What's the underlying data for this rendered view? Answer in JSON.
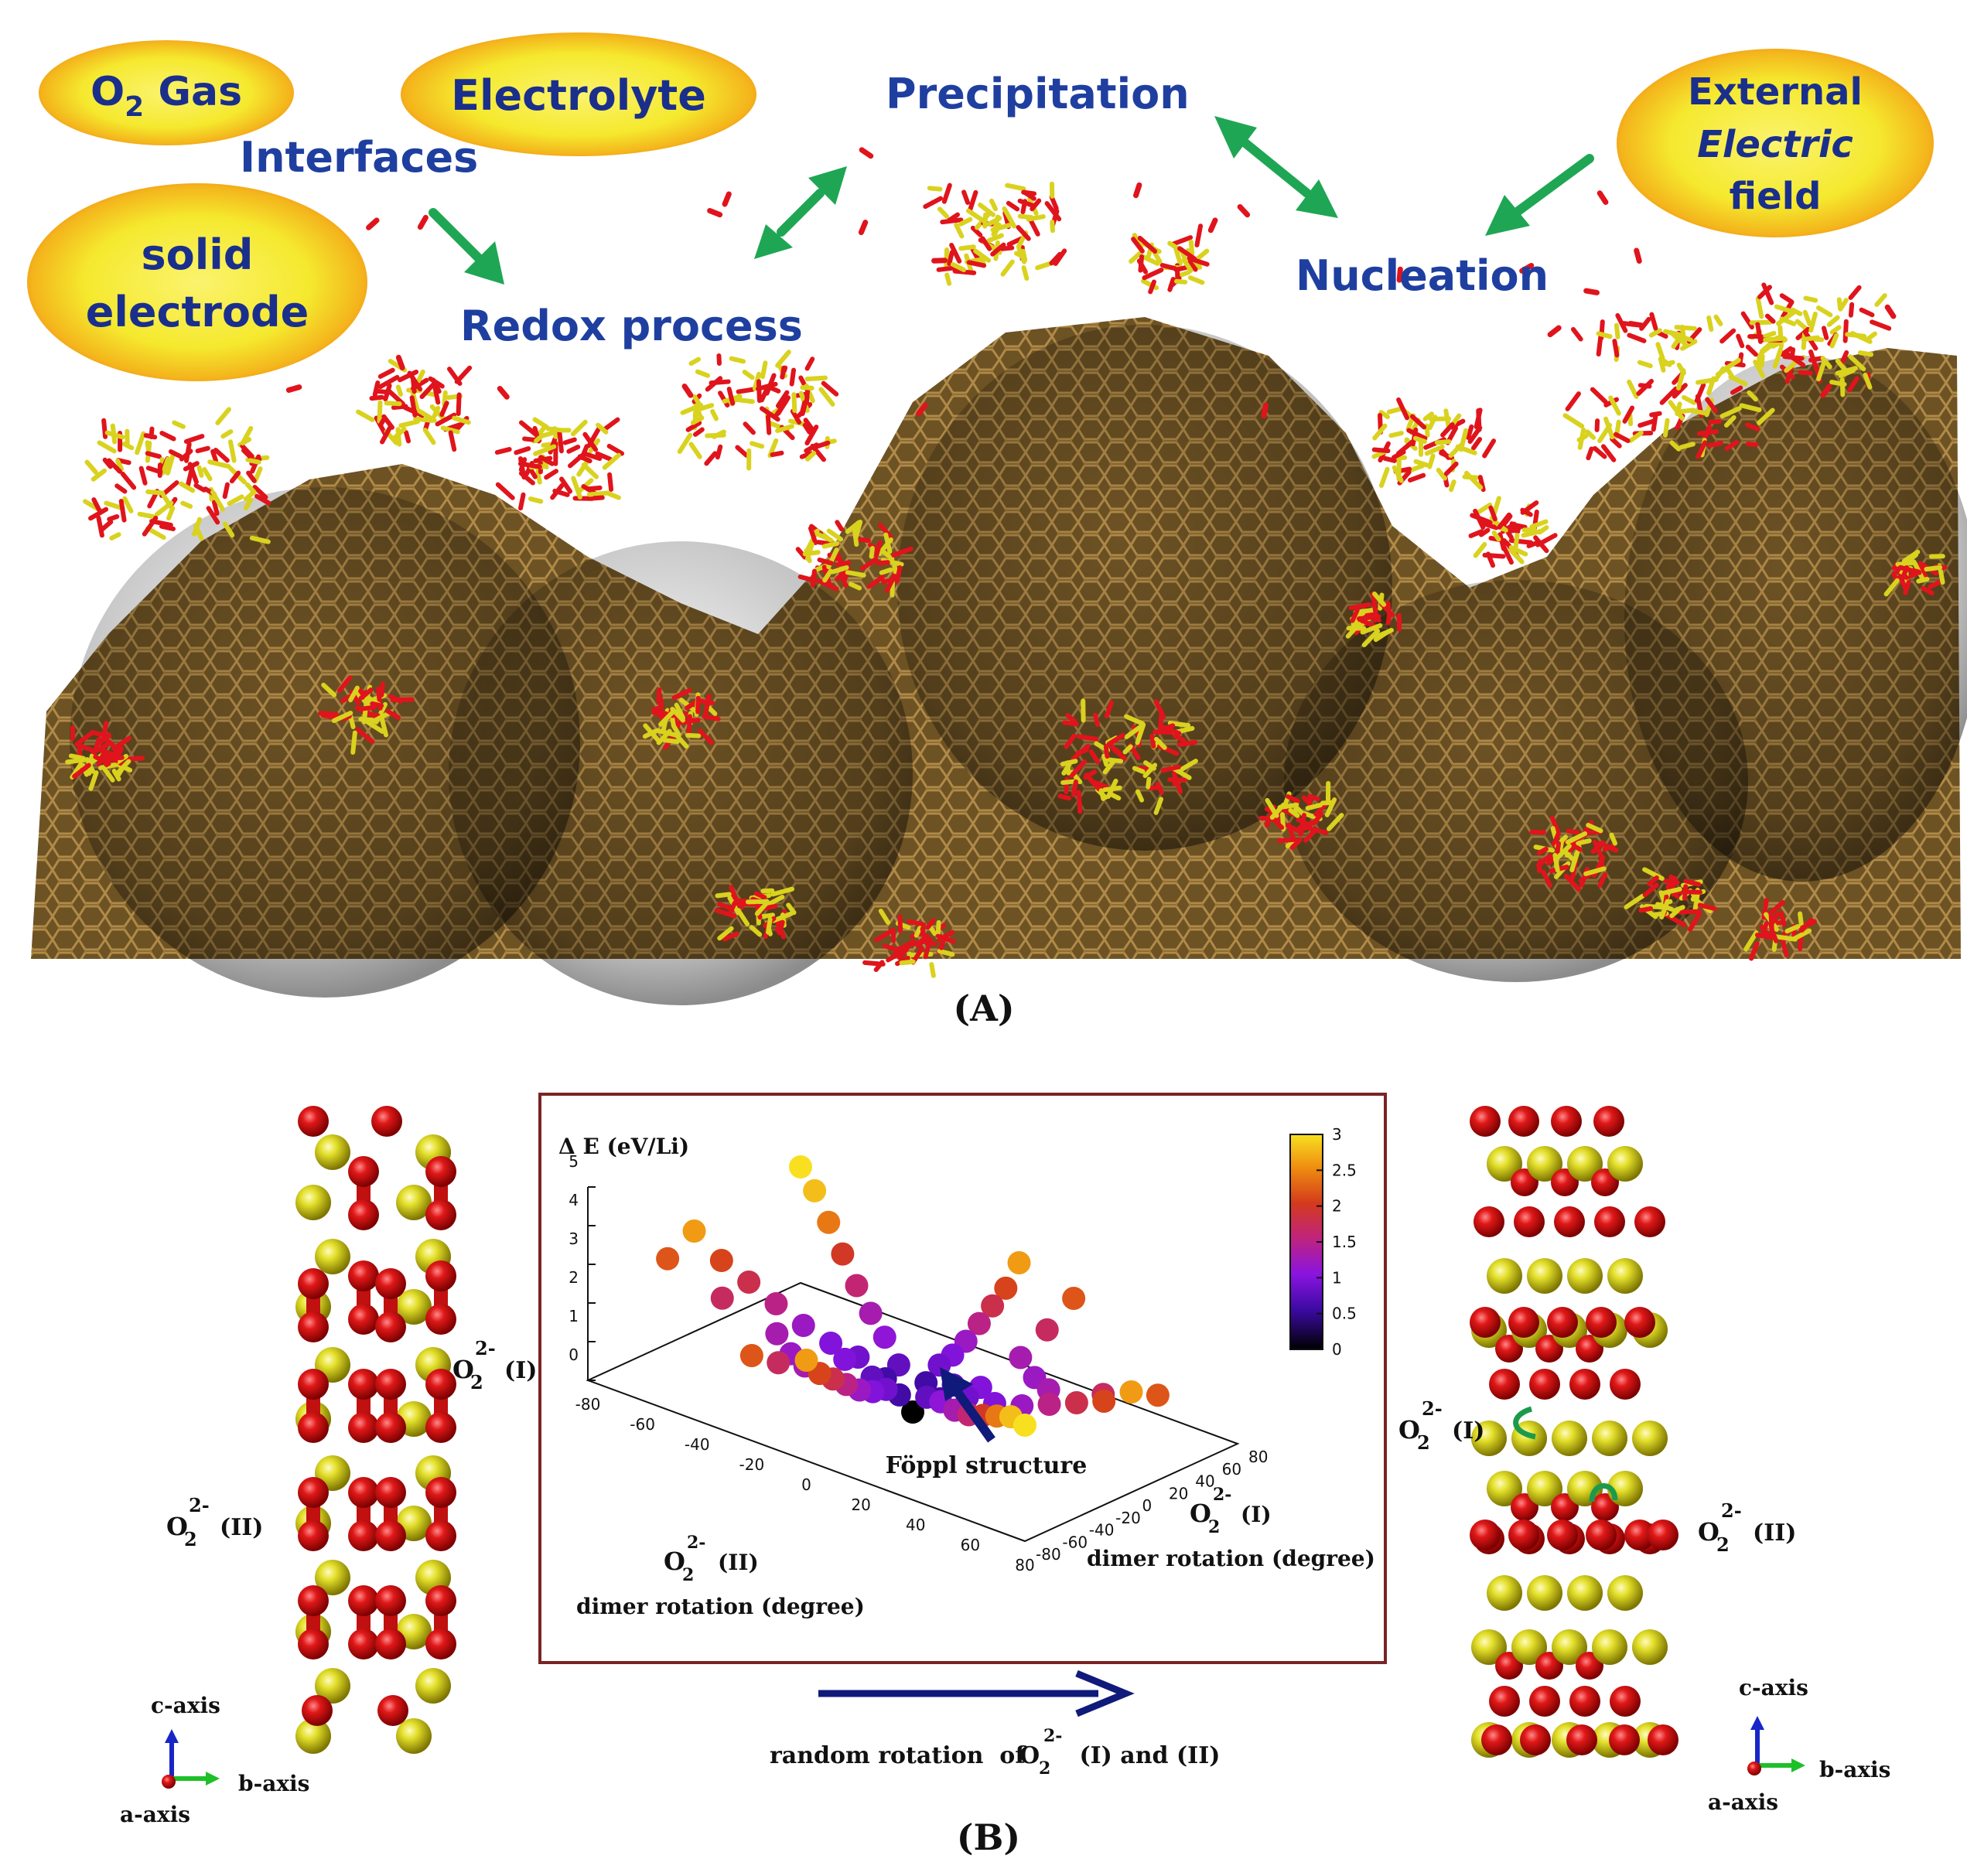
{
  "panel_a": {
    "label": "(A)",
    "bubbles": {
      "o2_gas": "O",
      "o2_gas_sub": "2",
      "o2_gas_rest": " Gas",
      "electrolyte": "Electrolyte",
      "solid": "solid",
      "electrode": "electrode",
      "external": "External",
      "electric": "Electric",
      "field": "field"
    },
    "processes": {
      "interfaces": "Interfaces",
      "redox": "Redox process",
      "precipitation": "Precipitation",
      "nucleation": "Nucleation"
    },
    "colors": {
      "bubble_fill": "#f5e93a",
      "bubble_rim": "#f39a14",
      "arrow": "#1fa654",
      "carbon": "#8a6a2c",
      "oxygen": "#e0141c",
      "lithium": "#d9d21e"
    }
  },
  "panel_b": {
    "label": "(B)",
    "left_structure": {
      "label_I": "(I)",
      "label_II": "(II)",
      "o_letter": "O",
      "o_sub": "2",
      "o_sup": "2-"
    },
    "right_structure": {
      "label_I": "(I)",
      "label_II": "(II)"
    },
    "axes_left": {
      "c": "c-axis",
      "b": "b-axis",
      "a": "a-axis"
    },
    "axes_right": {
      "c": "c-axis",
      "b": "b-axis",
      "a": "a-axis"
    },
    "arrow_caption": {
      "pre": "random rotation  of  ",
      "post": " (I) and (II)"
    },
    "plot": {
      "zlabel": "Δ E (eV/Li)",
      "z_ticks": [
        "0",
        "1",
        "2",
        "3",
        "4",
        "5"
      ],
      "x_ticks": [
        "-80",
        "-60",
        "-40",
        "-20",
        "0",
        "20",
        "40",
        "60",
        "80"
      ],
      "y_ticks": [
        "-80",
        "-60",
        "-40",
        "-20",
        "0",
        "20",
        "40",
        "60",
        "80"
      ],
      "xlabel_tag": "(II)",
      "xlabel_line2": "dimer rotation (degree)",
      "ylabel_tag": "(I)",
      "ylabel_line2": "dimer rotation (degree)",
      "annotation": "Föppl structure",
      "colorbar_ticks": [
        "0",
        "0.5",
        "1",
        "1.5",
        "2",
        "2.5",
        "3"
      ]
    }
  },
  "chart_data": {
    "type": "scatter",
    "title": "",
    "zlabel": "Δ E (eV/Li)",
    "xlabel": "O2 2- (II) dimer rotation (degree)",
    "ylabel": "O2 2- (I) dimer rotation (degree)",
    "xlim": [
      -80,
      80
    ],
    "ylim": [
      -80,
      80
    ],
    "zlim": [
      0,
      5
    ],
    "color_scale": {
      "min": 0,
      "max": 3,
      "palette": [
        "#000000",
        "#5a0fc8",
        "#b21fd0",
        "#c8283c",
        "#e26a10",
        "#f5d020"
      ]
    },
    "points": [
      [
        0,
        0,
        0.0
      ],
      [
        -10,
        0,
        0.6
      ],
      [
        10,
        0,
        0.6
      ],
      [
        0,
        -10,
        0.6
      ],
      [
        0,
        10,
        0.6
      ],
      [
        -10,
        -10,
        0.8
      ],
      [
        10,
        10,
        0.8
      ],
      [
        -10,
        10,
        0.8
      ],
      [
        10,
        -10,
        0.8
      ],
      [
        -20,
        0,
        0.9
      ],
      [
        20,
        0,
        0.9
      ],
      [
        0,
        -20,
        0.9
      ],
      [
        0,
        20,
        0.9
      ],
      [
        -20,
        -10,
        1.0
      ],
      [
        20,
        10,
        1.0
      ],
      [
        -20,
        20,
        1.1
      ],
      [
        20,
        -20,
        1.1
      ],
      [
        -30,
        0,
        1.0
      ],
      [
        30,
        0,
        1.0
      ],
      [
        0,
        30,
        1.0
      ],
      [
        0,
        -30,
        1.0
      ],
      [
        -30,
        30,
        1.3
      ],
      [
        30,
        -30,
        1.3
      ],
      [
        -30,
        -30,
        1.2
      ],
      [
        30,
        30,
        1.2
      ],
      [
        -40,
        0,
        1.2
      ],
      [
        40,
        0,
        1.2
      ],
      [
        0,
        40,
        1.2
      ],
      [
        0,
        -40,
        1.2
      ],
      [
        -40,
        40,
        1.6
      ],
      [
        40,
        -40,
        1.6
      ],
      [
        -50,
        0,
        1.5
      ],
      [
        50,
        0,
        1.5
      ],
      [
        0,
        50,
        1.5
      ],
      [
        0,
        -50,
        1.5
      ],
      [
        -50,
        50,
        2.0
      ],
      [
        50,
        -50,
        2.0
      ],
      [
        -60,
        0,
        1.8
      ],
      [
        60,
        0,
        1.8
      ],
      [
        0,
        60,
        1.8
      ],
      [
        0,
        -60,
        1.8
      ],
      [
        -70,
        0,
        2.1
      ],
      [
        70,
        0,
        2.1
      ],
      [
        0,
        70,
        2.1
      ],
      [
        0,
        -70,
        2.1
      ],
      [
        -80,
        0,
        2.6
      ],
      [
        80,
        0,
        2.6
      ],
      [
        0,
        80,
        2.6
      ],
      [
        0,
        -80,
        2.6
      ],
      [
        -80,
        80,
        3.0
      ],
      [
        80,
        -80,
        3.0
      ],
      [
        -60,
        60,
        2.4
      ],
      [
        60,
        -60,
        2.4
      ],
      [
        -70,
        70,
        2.8
      ],
      [
        70,
        -70,
        2.8
      ],
      [
        -20,
        -40,
        1.3
      ],
      [
        20,
        40,
        1.3
      ],
      [
        -40,
        -20,
        1.3
      ],
      [
        40,
        20,
        1.3
      ],
      [
        -60,
        -20,
        1.7
      ],
      [
        60,
        20,
        1.7
      ],
      [
        -20,
        -60,
        1.7
      ],
      [
        20,
        60,
        1.7
      ],
      [
        -80,
        -20,
        2.2
      ],
      [
        80,
        20,
        2.2
      ],
      [
        -20,
        -80,
        2.2
      ],
      [
        20,
        80,
        2.2
      ]
    ],
    "annotations": [
      "Föppl structure"
    ],
    "legend": "colorbar right"
  }
}
